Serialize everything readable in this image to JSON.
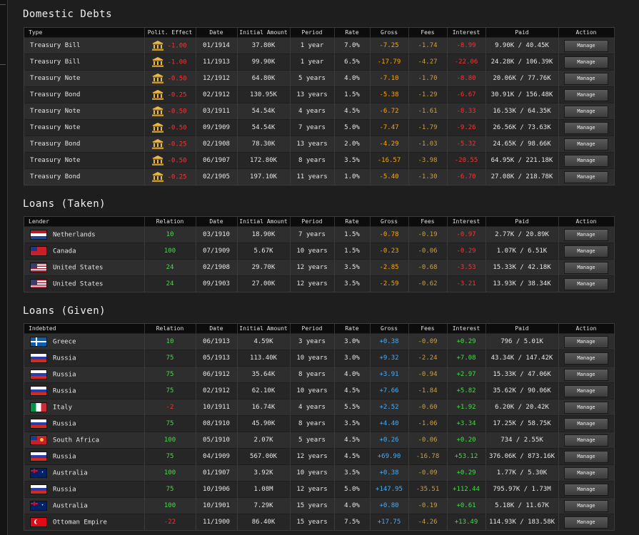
{
  "domestic": {
    "title": "Domestic Debts",
    "headers": [
      "Type",
      "Polit. Effect",
      "Date",
      "Initial Amount",
      "Period",
      "Rate",
      "Gross",
      "Fees",
      "Interest",
      "Paid",
      "Action"
    ],
    "rows": [
      {
        "type": "Treasury Bill",
        "effect": "-1.00",
        "date": "01/1914",
        "initial": "37.80K",
        "period": "1 year",
        "rate": "7.0%",
        "gross": "-7.25",
        "fees": "-1.74",
        "interest": "-8.99",
        "paid": "9.90K / 40.45K",
        "action": "Manage"
      },
      {
        "type": "Treasury Bill",
        "effect": "-1.00",
        "date": "11/1913",
        "initial": "99.90K",
        "period": "1 year",
        "rate": "6.5%",
        "gross": "-17.79",
        "fees": "-4.27",
        "interest": "-22.06",
        "paid": "24.28K / 106.39K",
        "action": "Manage"
      },
      {
        "type": "Treasury Note",
        "effect": "-0.50",
        "date": "12/1912",
        "initial": "64.80K",
        "period": "5 years",
        "rate": "4.0%",
        "gross": "-7.10",
        "fees": "-1.70",
        "interest": "-8.80",
        "paid": "20.06K / 77.76K",
        "action": "Manage"
      },
      {
        "type": "Treasury Bond",
        "effect": "-0.25",
        "date": "02/1912",
        "initial": "130.95K",
        "period": "13 years",
        "rate": "1.5%",
        "gross": "-5.38",
        "fees": "-1.29",
        "interest": "-6.67",
        "paid": "30.91K / 156.48K",
        "action": "Manage"
      },
      {
        "type": "Treasury Note",
        "effect": "-0.50",
        "date": "03/1911",
        "initial": "54.54K",
        "period": "4 years",
        "rate": "4.5%",
        "gross": "-6.72",
        "fees": "-1.61",
        "interest": "-8.33",
        "paid": "16.53K / 64.35K",
        "action": "Manage"
      },
      {
        "type": "Treasury Note",
        "effect": "-0.50",
        "date": "09/1909",
        "initial": "54.54K",
        "period": "7 years",
        "rate": "5.0%",
        "gross": "-7.47",
        "fees": "-1.79",
        "interest": "-9.26",
        "paid": "26.56K / 73.63K",
        "action": "Manage"
      },
      {
        "type": "Treasury Bond",
        "effect": "-0.25",
        "date": "02/1908",
        "initial": "78.30K",
        "period": "13 years",
        "rate": "2.0%",
        "gross": "-4.29",
        "fees": "-1.03",
        "interest": "-5.32",
        "paid": "24.65K / 98.66K",
        "action": "Manage"
      },
      {
        "type": "Treasury Note",
        "effect": "-0.50",
        "date": "06/1907",
        "initial": "172.80K",
        "period": "8 years",
        "rate": "3.5%",
        "gross": "-16.57",
        "fees": "-3.98",
        "interest": "-20.55",
        "paid": "64.95K / 221.18K",
        "action": "Manage"
      },
      {
        "type": "Treasury Bond",
        "effect": "-0.25",
        "date": "02/1905",
        "initial": "197.10K",
        "period": "11 years",
        "rate": "1.0%",
        "gross": "-5.40",
        "fees": "-1.30",
        "interest": "-6.70",
        "paid": "27.08K / 218.78K",
        "action": "Manage"
      }
    ]
  },
  "taken": {
    "title": "Loans (Taken)",
    "headers": [
      "Lender",
      "Relation",
      "Date",
      "Initial Amount",
      "Period",
      "Rate",
      "Gross",
      "Fees",
      "Interest",
      "Paid",
      "Action"
    ],
    "rows": [
      {
        "name": "Netherlands",
        "flag": "netherlands-flag-icon",
        "relation": "10",
        "date": "03/1910",
        "initial": "18.90K",
        "period": "7 years",
        "rate": "1.5%",
        "gross": "-0.78",
        "fees": "-0.19",
        "interest": "-0.97",
        "paid": "2.77K / 20.89K",
        "action": "Manage"
      },
      {
        "name": "Canada",
        "flag": "canada-flag-icon",
        "relation": "100",
        "date": "07/1909",
        "initial": "5.67K",
        "period": "10 years",
        "rate": "1.5%",
        "gross": "-0.23",
        "fees": "-0.06",
        "interest": "-0.29",
        "paid": "1.07K / 6.51K",
        "action": "Manage"
      },
      {
        "name": "United States",
        "flag": "usa-flag-icon",
        "relation": "24",
        "date": "02/1908",
        "initial": "29.70K",
        "period": "12 years",
        "rate": "3.5%",
        "gross": "-2.85",
        "fees": "-0.68",
        "interest": "-3.53",
        "paid": "15.33K / 42.18K",
        "action": "Manage"
      },
      {
        "name": "United States",
        "flag": "usa-flag-icon",
        "relation": "24",
        "date": "09/1903",
        "initial": "27.00K",
        "period": "12 years",
        "rate": "3.5%",
        "gross": "-2.59",
        "fees": "-0.62",
        "interest": "-3.21",
        "paid": "13.93K / 38.34K",
        "action": "Manage"
      }
    ]
  },
  "given": {
    "title": "Loans (Given)",
    "headers": [
      "Indebted",
      "Relation",
      "Date",
      "Initial Amount",
      "Period",
      "Rate",
      "Gross",
      "Fees",
      "Interest",
      "Paid",
      "Action"
    ],
    "rows": [
      {
        "name": "Greece",
        "flag": "greece-flag-icon",
        "relation": "10",
        "date": "06/1913",
        "initial": "4.59K",
        "period": "3 years",
        "rate": "3.0%",
        "gross": "+0.38",
        "fees": "-0.09",
        "interest": "+0.29",
        "paid": "796 / 5.01K",
        "action": "Manage"
      },
      {
        "name": "Russia",
        "flag": "russia-flag-icon",
        "relation": "75",
        "date": "05/1913",
        "initial": "113.40K",
        "period": "10 years",
        "rate": "3.0%",
        "gross": "+9.32",
        "fees": "-2.24",
        "interest": "+7.08",
        "paid": "43.34K / 147.42K",
        "action": "Manage"
      },
      {
        "name": "Russia",
        "flag": "russia-flag-icon",
        "relation": "75",
        "date": "06/1912",
        "initial": "35.64K",
        "period": "8 years",
        "rate": "4.0%",
        "gross": "+3.91",
        "fees": "-0.94",
        "interest": "+2.97",
        "paid": "15.33K / 47.06K",
        "action": "Manage"
      },
      {
        "name": "Russia",
        "flag": "russia-flag-icon",
        "relation": "75",
        "date": "02/1912",
        "initial": "62.10K",
        "period": "10 years",
        "rate": "4.5%",
        "gross": "+7.66",
        "fees": "-1.84",
        "interest": "+5.82",
        "paid": "35.62K / 90.06K",
        "action": "Manage"
      },
      {
        "name": "Italy",
        "flag": "italy-flag-icon",
        "relation": "-2",
        "date": "10/1911",
        "initial": "16.74K",
        "period": "4 years",
        "rate": "5.5%",
        "gross": "+2.52",
        "fees": "-0.60",
        "interest": "+1.92",
        "paid": "6.20K / 20.42K",
        "action": "Manage"
      },
      {
        "name": "Russia",
        "flag": "russia-flag-icon",
        "relation": "75",
        "date": "08/1910",
        "initial": "45.90K",
        "period": "8 years",
        "rate": "3.5%",
        "gross": "+4.40",
        "fees": "-1.06",
        "interest": "+3.34",
        "paid": "17.25K / 58.75K",
        "action": "Manage"
      },
      {
        "name": "South Africa",
        "flag": "south-africa-flag-icon",
        "relation": "100",
        "date": "05/1910",
        "initial": "2.07K",
        "period": "5 years",
        "rate": "4.5%",
        "gross": "+0.26",
        "fees": "-0.06",
        "interest": "+0.20",
        "paid": "734 / 2.55K",
        "action": "Manage"
      },
      {
        "name": "Russia",
        "flag": "russia-flag-icon",
        "relation": "75",
        "date": "04/1909",
        "initial": "567.00K",
        "period": "12 years",
        "rate": "4.5%",
        "gross": "+69.90",
        "fees": "-16.78",
        "interest": "+53.12",
        "paid": "376.06K / 873.16K",
        "action": "Manage"
      },
      {
        "name": "Australia",
        "flag": "australia-flag-icon",
        "relation": "100",
        "date": "01/1907",
        "initial": "3.92K",
        "period": "10 years",
        "rate": "3.5%",
        "gross": "+0.38",
        "fees": "-0.09",
        "interest": "+0.29",
        "paid": "1.77K / 5.30K",
        "action": "Manage"
      },
      {
        "name": "Russia",
        "flag": "russia-flag-icon",
        "relation": "75",
        "date": "10/1906",
        "initial": "1.08M",
        "period": "12 years",
        "rate": "5.0%",
        "gross": "+147.95",
        "fees": "-35.51",
        "interest": "+112.44",
        "paid": "795.97K / 1.73M",
        "action": "Manage"
      },
      {
        "name": "Australia",
        "flag": "australia-flag-icon",
        "relation": "100",
        "date": "10/1901",
        "initial": "7.29K",
        "period": "15 years",
        "rate": "4.0%",
        "gross": "+0.80",
        "fees": "-0.19",
        "interest": "+0.61",
        "paid": "5.18K / 11.67K",
        "action": "Manage"
      },
      {
        "name": "Ottoman Empire",
        "flag": "ottoman-flag-icon",
        "relation": "-22",
        "date": "11/1900",
        "initial": "86.40K",
        "period": "15 years",
        "rate": "7.5%",
        "gross": "+17.75",
        "fees": "-4.26",
        "interest": "+13.49",
        "paid": "114.93K / 183.58K",
        "action": "Manage"
      }
    ]
  },
  "colors": {
    "negative": "#ff3030",
    "positive": "#3ee03e",
    "gross_negative": "#ffa500",
    "gross_positive": "#40b0ff",
    "background": "#1e1e1e",
    "header": "#0c0c0c"
  }
}
